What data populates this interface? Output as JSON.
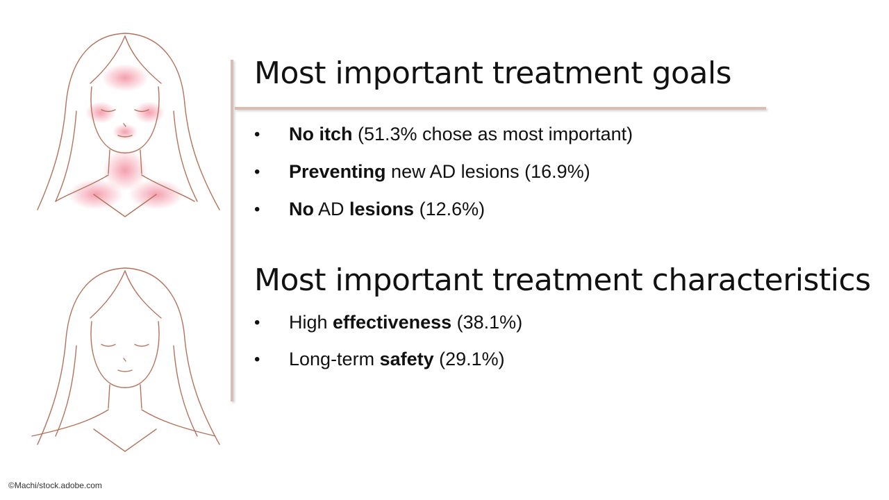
{
  "colors": {
    "divider": "#d8bdb5",
    "line_art": "#b5725a",
    "rash": "#f07f93",
    "text": "#111111"
  },
  "images": {
    "top": "woman-face-with-rash-illustration",
    "bottom": "woman-face-clear-skin-illustration"
  },
  "goals": {
    "title": "Most important treatment goals",
    "items": [
      {
        "parts": [
          {
            "text": "No itch",
            "bold": true
          },
          {
            "text": " (51.3% chose as most important)",
            "bold": false
          }
        ]
      },
      {
        "parts": [
          {
            "text": "Preventing",
            "bold": true
          },
          {
            "text": " new AD lesions (16.9%)",
            "bold": false
          }
        ]
      },
      {
        "parts": [
          {
            "text": "No",
            "bold": true
          },
          {
            "text": " AD ",
            "bold": false
          },
          {
            "text": "lesions",
            "bold": true
          },
          {
            "text": " (12.6%)",
            "bold": false
          }
        ]
      }
    ]
  },
  "characteristics": {
    "title": "Most important treatment characteristics",
    "items": [
      {
        "parts": [
          {
            "text": "High ",
            "bold": false
          },
          {
            "text": "effectiveness",
            "bold": true
          },
          {
            "text": " (38.1%)",
            "bold": false
          }
        ]
      },
      {
        "parts": [
          {
            "text": "Long-term ",
            "bold": false
          },
          {
            "text": "safety",
            "bold": true
          },
          {
            "text": " (29.1%)",
            "bold": false
          }
        ]
      }
    ]
  },
  "credit": "©Machi/stock.adobe.com"
}
